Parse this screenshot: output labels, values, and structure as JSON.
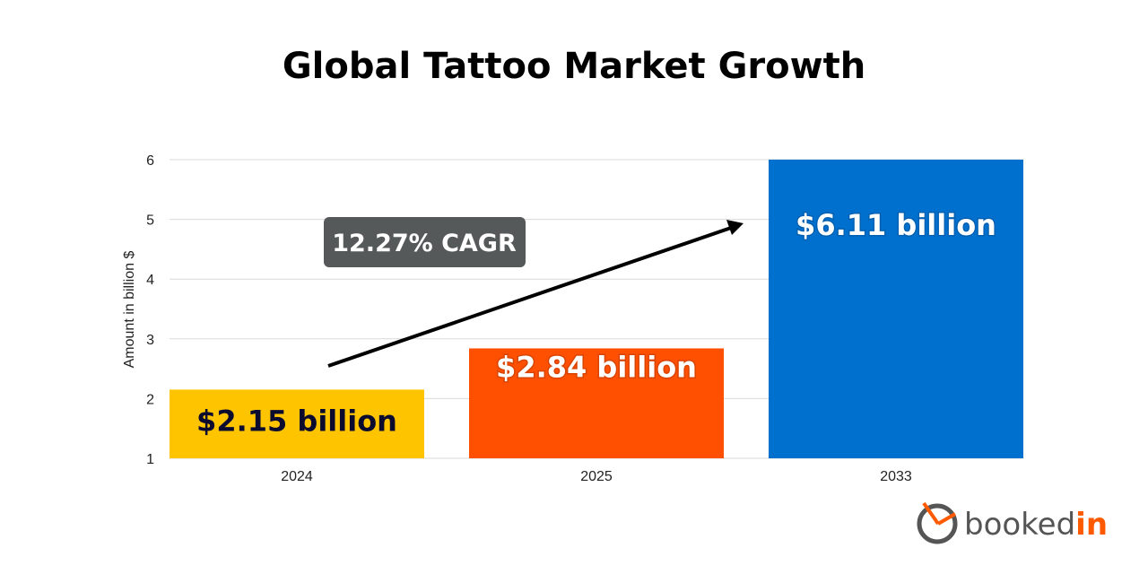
{
  "chart_data": {
    "type": "bar",
    "title": "Global Tattoo Market Growth",
    "ylabel": "Amount in billion $",
    "xlabel": "",
    "ylim": [
      1,
      6
    ],
    "yticks": [
      "1",
      "2",
      "3",
      "4",
      "5",
      "6"
    ],
    "grid": true,
    "categories": [
      "2024",
      "2025",
      "2033"
    ],
    "values": [
      2.15,
      2.84,
      6.11
    ],
    "data_labels": [
      "$2.15 billion",
      "$2.84 billion",
      "$6.11 billion"
    ],
    "colors": [
      "#FFC400",
      "#FF4F00",
      "#0070CF"
    ],
    "label_colors": [
      "#0B0B30",
      "#FFFFFF",
      "#FFFFFF"
    ],
    "annotation": "12.27% CAGR",
    "annotation_color": "#565959"
  },
  "brand": {
    "logo_text_1": "booked",
    "logo_text_2": "in",
    "accent": "#FF5A00",
    "gray": "#555555"
  }
}
